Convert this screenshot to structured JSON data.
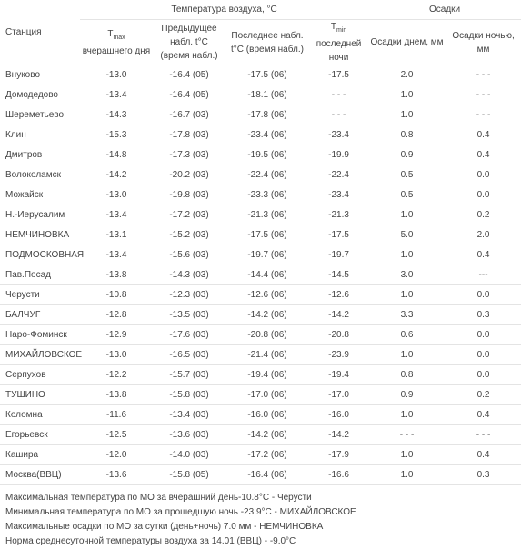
{
  "table": {
    "group_headers": {
      "temperature": "Температура воздуха, °С",
      "precipitation": "Осадки"
    },
    "columns": {
      "station": "Станция",
      "tmax": {
        "symbol": "T",
        "subscript": "max",
        "label": "вчерашнего дня"
      },
      "previous": "Предыдущее набл. t°С (время набл.)",
      "last": "Последнее набл. t°С (время набл.)",
      "tmin": {
        "symbol": "T",
        "subscript": "min",
        "label": "последней ночи"
      },
      "precip_day": "Осадки днем, мм",
      "precip_night": "Осадки ночью, мм"
    },
    "rows": [
      [
        "Внуково",
        "-13.0",
        "-16.4 (05)",
        "-17.5 (06)",
        "-17.5",
        "2.0",
        "- - -"
      ],
      [
        "Домодедово",
        "-13.4",
        "-16.4 (05)",
        "-18.1 (06)",
        "- - -",
        "1.0",
        "- - -"
      ],
      [
        "Шереметьево",
        "-14.3",
        "-16.7 (03)",
        "-17.8 (06)",
        "- - -",
        "1.0",
        "- - -"
      ],
      [
        "Клин",
        "-15.3",
        "-17.8 (03)",
        "-23.4 (06)",
        "-23.4",
        "0.8",
        "0.4"
      ],
      [
        "Дмитров",
        "-14.8",
        "-17.3 (03)",
        "-19.5 (06)",
        "-19.9",
        "0.9",
        "0.4"
      ],
      [
        "Волоколамск",
        "-14.2",
        "-20.2 (03)",
        "-22.4 (06)",
        "-22.4",
        "0.5",
        "0.0"
      ],
      [
        "Можайск",
        "-13.0",
        "-19.8 (03)",
        "-23.3 (06)",
        "-23.4",
        "0.5",
        "0.0"
      ],
      [
        "Н.-Иерусалим",
        "-13.4",
        "-17.2 (03)",
        "-21.3 (06)",
        "-21.3",
        "1.0",
        "0.2"
      ],
      [
        "НЕМЧИНОВКА",
        "-13.1",
        "-15.2 (03)",
        "-17.5 (06)",
        "-17.5",
        "5.0",
        "2.0"
      ],
      [
        "ПОДМОСКОВНАЯ",
        "-13.4",
        "-15.6 (03)",
        "-19.7 (06)",
        "-19.7",
        "1.0",
        "0.4"
      ],
      [
        "Пав.Посад",
        "-13.8",
        "-14.3 (03)",
        "-14.4 (06)",
        "-14.5",
        "3.0",
        "---"
      ],
      [
        "Черусти",
        "-10.8",
        "-12.3 (03)",
        "-12.6 (06)",
        "-12.6",
        "1.0",
        "0.0"
      ],
      [
        "БАЛЧУГ",
        "-12.8",
        "-13.5 (03)",
        "-14.2 (06)",
        "-14.2",
        "3.3",
        "0.3"
      ],
      [
        "Наро-Фоминск",
        "-12.9",
        "-17.6 (03)",
        "-20.8 (06)",
        "-20.8",
        "0.6",
        "0.0"
      ],
      [
        "МИХАЙЛОВСКОЕ",
        "-13.0",
        "-16.5 (03)",
        "-21.4 (06)",
        "-23.9",
        "1.0",
        "0.0"
      ],
      [
        "Серпухов",
        "-12.2",
        "-15.7 (03)",
        "-19.4 (06)",
        "-19.4",
        "0.8",
        "0.0"
      ],
      [
        "ТУШИНО",
        "-13.8",
        "-15.8 (03)",
        "-17.0 (06)",
        "-17.0",
        "0.9",
        "0.2"
      ],
      [
        "Коломна",
        "-11.6",
        "-13.4 (03)",
        "-16.0 (06)",
        "-16.0",
        "1.0",
        "0.4"
      ],
      [
        "Егорьевск",
        "-12.5",
        "-13.6 (03)",
        "-14.2 (06)",
        "-14.2",
        "- - -",
        "- - -"
      ],
      [
        "Кашира",
        "-12.0",
        "-14.0 (03)",
        "-17.2 (06)",
        "-17.9",
        "1.0",
        "0.4"
      ],
      [
        "Москва(ВВЦ)",
        "-13.6",
        "-15.8 (05)",
        "-16.4 (06)",
        "-16.6",
        "1.0",
        "0.3"
      ]
    ]
  },
  "notes": [
    "Максимальная температура по МО за вчерашний день-10.8°С - Черусти",
    "Минимальная температура по МО за прошедшую ночь -23.9°С - МИХАЙЛОВСКОЕ",
    "Максимальные осадки по МО за сутки (день+ночь) 7.0 мм - НЕМЧИНОВКА",
    "Норма среднесуточной температуры воздуха за 14.01 (ВВЦ) - -9.0°С"
  ]
}
